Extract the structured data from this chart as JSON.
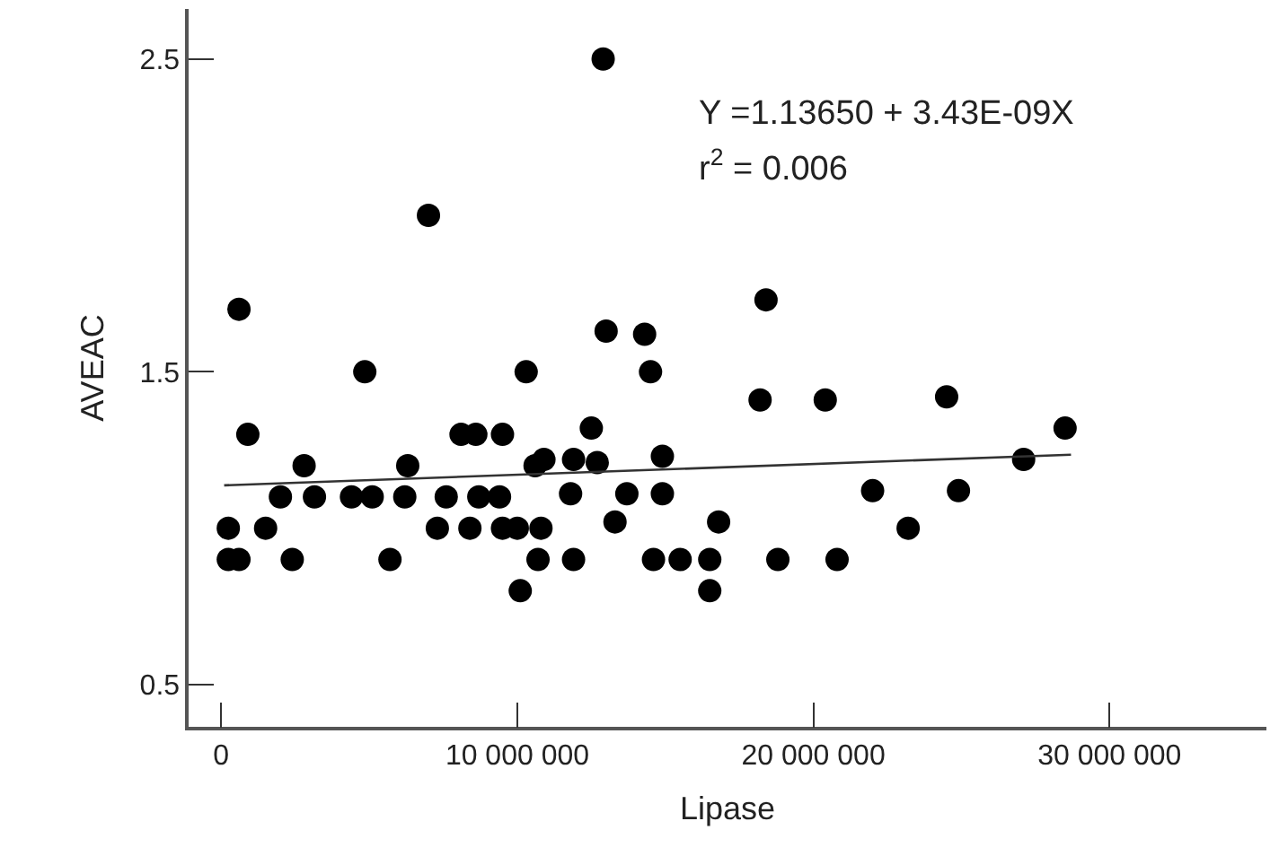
{
  "chart_data": {
    "type": "scatter",
    "xlabel": "Lipase",
    "ylabel": "AVEAC",
    "xlim": [
      -1100000,
      35300000
    ],
    "ylim": [
      0.365,
      2.66
    ],
    "xticks": [
      0,
      {
        "value": 10000000,
        "label": "10 000 000"
      },
      {
        "value": 20000000,
        "label": "20 000 000"
      },
      {
        "value": 30000000,
        "label": "30 000 000"
      }
    ],
    "yticks": [
      0.5,
      1.5,
      2.5
    ],
    "marker": "circle",
    "annotations": [
      "Y =1.13650 + 3.43E-09X",
      "r$^{2}$ = 0.006"
    ],
    "series": [
      {
        "color": "#000000",
        "x": [
          600000,
          7000000,
          4850000,
          10300000,
          900000,
          2800000,
          6300000,
          8100000,
          8600000,
          9500000,
          10600000,
          2000000,
          3150000,
          4400000,
          5100000,
          6200000,
          7600000,
          8700000,
          9400000,
          240000,
          1500000,
          7300000,
          8400000,
          9500000,
          10000000,
          240000,
          600000,
          2400000,
          5700000,
          10700000,
          10100000,
          13000000,
          14300000,
          14500000,
          18400000,
          18200000,
          20400000,
          12500000,
          10900000,
          11900000,
          12700000,
          14900000,
          11800000,
          13700000,
          14900000,
          22000000,
          10800000,
          13300000,
          16800000,
          11900000,
          14600000,
          15500000,
          16500000,
          18800000,
          20800000,
          16500000,
          24500000,
          28500000,
          27100000,
          24900000,
          23200000,
          12900000
        ],
        "values": [
          1.7,
          2.0,
          1.5,
          1.5,
          1.3,
          1.2,
          1.2,
          1.3,
          1.3,
          1.3,
          1.2,
          1.1,
          1.1,
          1.1,
          1.1,
          1.1,
          1.1,
          1.1,
          1.1,
          1.0,
          1.0,
          1.0,
          1.0,
          1.0,
          1.0,
          0.9,
          0.9,
          0.9,
          0.9,
          0.9,
          0.8,
          1.63,
          1.62,
          1.5,
          1.73,
          1.41,
          1.41,
          1.32,
          1.22,
          1.22,
          1.21,
          1.23,
          1.11,
          1.11,
          1.11,
          1.12,
          1.0,
          1.02,
          1.02,
          0.9,
          0.9,
          0.9,
          0.9,
          0.9,
          0.9,
          0.8,
          1.42,
          1.32,
          1.22,
          1.12,
          1.0,
          2.5
        ]
      },
      {
        "type": "line",
        "color": "#333333",
        "marker": "none",
        "line_style": "solid",
        "x": [
          100000,
          28700000
        ],
        "values": [
          1.137,
          1.235
        ]
      }
    ]
  }
}
